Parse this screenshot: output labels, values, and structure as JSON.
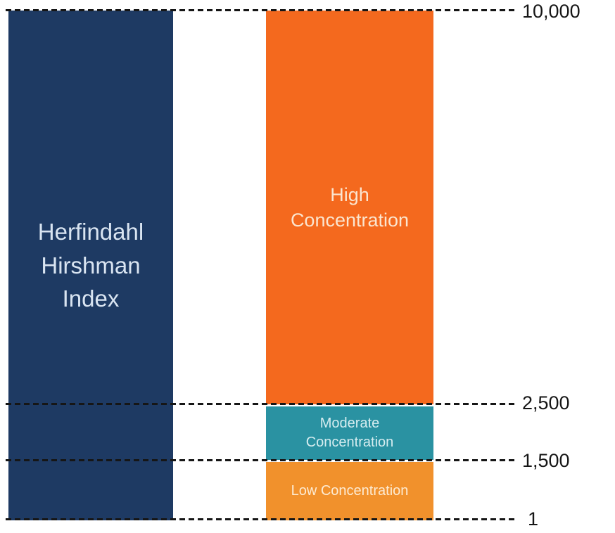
{
  "chart_data": {
    "type": "bar",
    "title": "Herfindahl Hirshman Index",
    "ylim": [
      1,
      10000
    ],
    "legend_position": "none",
    "grid": "dashed horizontal reference lines",
    "axis_ticks": [
      {
        "label": "10,000",
        "value": 10000
      },
      {
        "label": "2,500",
        "value": 2500
      },
      {
        "label": "1,500",
        "value": 1500
      },
      {
        "label": "1",
        "value": 1
      }
    ],
    "segments": [
      {
        "label": "High Concentration",
        "from": 2500,
        "to": 10000,
        "color": "#f4691e",
        "text_color": "#fbe5cf"
      },
      {
        "label": "Moderate Concentration",
        "from": 1500,
        "to": 2500,
        "color": "#2a92a2",
        "text_color": "#d6edf0"
      },
      {
        "label": "Low Concentration",
        "from": 1,
        "to": 1500,
        "color": "#f1912c",
        "text_color": "#fdebd3"
      }
    ],
    "title_bar": {
      "label": "Herfindahl Hirshman Index",
      "color": "#1e3a63",
      "text_color": "#d9e4f1"
    },
    "gridline_color": "#161616",
    "background_color": "#ffffff"
  }
}
